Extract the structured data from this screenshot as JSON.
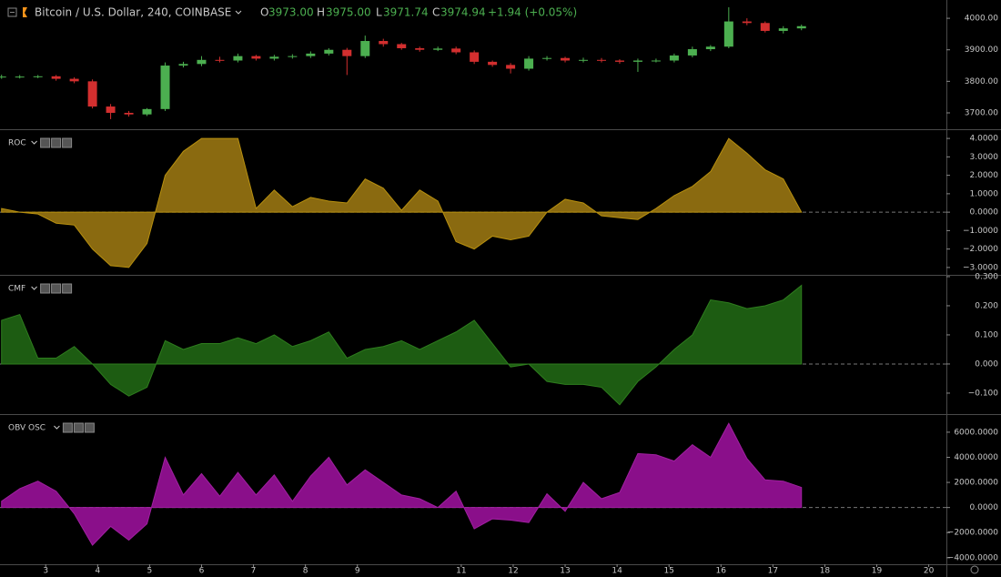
{
  "chart_data": [
    {
      "type": "candlestick",
      "title": "Bitcoin / U.S. Dollar, 240, COINBASE",
      "ohlc_legend": [
        {
          "label": "O",
          "value": "3973.00"
        },
        {
          "label": "H",
          "value": "3975.00"
        },
        {
          "label": "L",
          "value": "3971.74"
        },
        {
          "label": "C",
          "value": "3974.94"
        }
      ],
      "change": "+1.94 (+0.05%)",
      "up_color": "#4caf50",
      "down_color": "#d32f2f",
      "xlim": [
        2.12,
        20.34
      ],
      "x": [
        2.15,
        2.5,
        2.85,
        3.2,
        3.55,
        3.9,
        4.25,
        4.6,
        4.95,
        5.3,
        5.65,
        6.0,
        6.35,
        6.7,
        7.05,
        7.4,
        7.75,
        8.1,
        8.45,
        8.8,
        9.15,
        9.5,
        9.85,
        10.2,
        10.55,
        10.9,
        11.25,
        11.6,
        11.95,
        12.3,
        12.65,
        13.0,
        13.35,
        13.7,
        14.05,
        14.4,
        14.75,
        15.1,
        15.45,
        15.8,
        16.15,
        16.5,
        16.85,
        17.2,
        17.55
      ],
      "open": [
        3814,
        3815,
        3815,
        3816,
        3808,
        3800,
        3720,
        3700,
        3695,
        3712,
        3850,
        3855,
        3868,
        3866,
        3880,
        3872,
        3878,
        3880,
        3888,
        3900,
        3880,
        3928,
        3918,
        3905,
        3900,
        3904,
        3892,
        3862,
        3852,
        3840,
        3872,
        3874,
        3866,
        3868,
        3866,
        3862,
        3866,
        3866,
        3882,
        3902,
        3910,
        3990,
        3985,
        3960,
        3968
      ],
      "high": [
        3821,
        3820,
        3820,
        3820,
        3813,
        3806,
        3728,
        3706,
        3715,
        3860,
        3862,
        3880,
        3878,
        3888,
        3884,
        3884,
        3886,
        3895,
        3905,
        3906,
        3945,
        3935,
        3922,
        3910,
        3910,
        3910,
        3898,
        3866,
        3858,
        3880,
        3880,
        3878,
        3875,
        3874,
        3870,
        3872,
        3872,
        3888,
        3910,
        3915,
        4035,
        4000,
        3990,
        3975,
        3980
      ],
      "low": [
        3808,
        3809,
        3810,
        3802,
        3794,
        3714,
        3680,
        3688,
        3690,
        3706,
        3844,
        3848,
        3860,
        3860,
        3866,
        3866,
        3872,
        3874,
        3882,
        3820,
        3874,
        3910,
        3900,
        3894,
        3896,
        3886,
        3855,
        3846,
        3825,
        3834,
        3866,
        3860,
        3860,
        3860,
        3856,
        3830,
        3860,
        3860,
        3876,
        3896,
        3905,
        3978,
        3955,
        3952,
        3962
      ],
      "close": [
        3815,
        3815,
        3816,
        3808,
        3800,
        3720,
        3700,
        3695,
        3712,
        3850,
        3855,
        3868,
        3866,
        3880,
        3872,
        3878,
        3880,
        3888,
        3900,
        3880,
        3928,
        3918,
        3905,
        3900,
        3904,
        3892,
        3862,
        3852,
        3840,
        3872,
        3874,
        3866,
        3868,
        3866,
        3862,
        3866,
        3866,
        3882,
        3902,
        3910,
        3990,
        3985,
        3960,
        3968,
        3975
      ],
      "ylim": [
        3648,
        4058
      ],
      "yticks": [
        {
          "value": 3700,
          "label": "3700.00"
        },
        {
          "value": 3800,
          "label": "3800.00"
        },
        {
          "value": 3900,
          "label": "3900.00"
        },
        {
          "value": 4000,
          "label": "4000.00"
        }
      ]
    },
    {
      "type": "area",
      "title": "ROC",
      "color": "#8a6a10",
      "line_color": "#b8900f",
      "xlim": [
        2.12,
        20.34
      ],
      "x": [
        2.15,
        2.5,
        2.85,
        3.2,
        3.55,
        3.9,
        4.25,
        4.6,
        4.95,
        5.3,
        5.65,
        6.0,
        6.35,
        6.7,
        7.05,
        7.4,
        7.75,
        8.1,
        8.45,
        8.8,
        9.15,
        9.5,
        9.85,
        10.2,
        10.55,
        10.9,
        11.25,
        11.6,
        11.95,
        12.3,
        12.65,
        13.0,
        13.35,
        13.7,
        14.05,
        14.4,
        14.75,
        15.1,
        15.45,
        15.8,
        16.15,
        16.5,
        16.85,
        17.2,
        17.55
      ],
      "values": [
        0.2,
        0.0,
        -0.1,
        -0.6,
        -0.7,
        -2.0,
        -2.9,
        -3.0,
        -1.7,
        2.0,
        3.3,
        4.0,
        4.0,
        4.0,
        0.2,
        1.2,
        0.3,
        0.8,
        0.6,
        0.5,
        1.8,
        1.3,
        0.1,
        1.2,
        0.6,
        -1.6,
        -2.0,
        -1.3,
        -1.5,
        -1.3,
        0.0,
        0.7,
        0.5,
        -0.2,
        -0.3,
        -0.4,
        0.2,
        0.9,
        1.4,
        2.2,
        4.0,
        3.2,
        2.3,
        1.8,
        0.0
      ],
      "ylim": [
        -3.4,
        4.45
      ],
      "yticks": [
        {
          "value": -3,
          "label": "−3.0000"
        },
        {
          "value": -2,
          "label": "−2.0000"
        },
        {
          "value": -1,
          "label": "−1.0000"
        },
        {
          "value": 0,
          "label": "0.0000"
        },
        {
          "value": 1,
          "label": "1.0000"
        },
        {
          "value": 2,
          "label": "2.0000"
        },
        {
          "value": 3,
          "label": "3.0000"
        },
        {
          "value": 4,
          "label": "4.0000"
        }
      ]
    },
    {
      "type": "area",
      "title": "CMF",
      "color": "#1d5c12",
      "line_color": "#2e7d1e",
      "xlim": [
        2.12,
        20.34
      ],
      "x": [
        2.15,
        2.5,
        2.85,
        3.2,
        3.55,
        3.9,
        4.25,
        4.6,
        4.95,
        5.3,
        5.65,
        6.0,
        6.35,
        6.7,
        7.05,
        7.4,
        7.75,
        8.1,
        8.45,
        8.8,
        9.15,
        9.5,
        9.85,
        10.2,
        10.55,
        10.9,
        11.25,
        11.6,
        11.95,
        12.3,
        12.65,
        13.0,
        13.35,
        13.7,
        14.05,
        14.4,
        14.75,
        15.1,
        15.45,
        15.8,
        16.15,
        16.5,
        16.85,
        17.2,
        17.55
      ],
      "values": [
        0.15,
        0.17,
        0.02,
        0.02,
        0.06,
        0.0,
        -0.07,
        -0.11,
        -0.08,
        0.08,
        0.05,
        0.07,
        0.07,
        0.09,
        0.07,
        0.1,
        0.06,
        0.08,
        0.11,
        0.02,
        0.05,
        0.06,
        0.08,
        0.05,
        0.08,
        0.11,
        0.15,
        0.07,
        -0.01,
        0.0,
        -0.06,
        -0.07,
        -0.07,
        -0.08,
        -0.14,
        -0.06,
        -0.01,
        0.05,
        0.1,
        0.22,
        0.21,
        0.19,
        0.2,
        0.22,
        0.27
      ],
      "ylim": [
        -0.172,
        0.303
      ],
      "yticks": [
        {
          "value": -0.1,
          "label": "−0.100"
        },
        {
          "value": 0,
          "label": "0.000"
        },
        {
          "value": 0.1,
          "label": "0.100"
        },
        {
          "value": 0.2,
          "label": "0.200"
        },
        {
          "value": 0.3,
          "label": "0.300"
        }
      ]
    },
    {
      "type": "area",
      "title": "OBV OSC",
      "color": "#8a0f8a",
      "line_color": "#a020a0",
      "xlim": [
        2.12,
        20.34
      ],
      "x": [
        2.15,
        2.5,
        2.85,
        3.2,
        3.55,
        3.9,
        4.25,
        4.6,
        4.95,
        5.3,
        5.65,
        6.0,
        6.35,
        6.7,
        7.05,
        7.4,
        7.75,
        8.1,
        8.45,
        8.8,
        9.15,
        9.5,
        9.85,
        10.2,
        10.55,
        10.9,
        11.25,
        11.6,
        11.95,
        12.3,
        12.65,
        13.0,
        13.35,
        13.7,
        14.05,
        14.4,
        14.75,
        15.1,
        15.45,
        15.8,
        16.15,
        16.5,
        16.85,
        17.2,
        17.55
      ],
      "values": [
        500,
        1500,
        2100,
        1300,
        -500,
        -3000,
        -1500,
        -2600,
        -1300,
        4000,
        1000,
        2700,
        900,
        2800,
        1000,
        2600,
        500,
        2500,
        4000,
        1800,
        3000,
        2000,
        1000,
        700,
        0,
        1300,
        -1700,
        -900,
        -1000,
        -1200,
        1100,
        -300,
        2000,
        700,
        1200,
        4300,
        4200,
        3700,
        5000,
        4000,
        6700,
        3900,
        2200,
        2100,
        1600
      ],
      "ylim": [
        -4520,
        7370
      ],
      "yticks": [
        {
          "value": -4000,
          "label": "−4000.0000"
        },
        {
          "value": -2000,
          "label": "−2000.0000"
        },
        {
          "value": 0,
          "label": "0.0000"
        },
        {
          "value": 2000,
          "label": "2000.0000"
        },
        {
          "value": 4000,
          "label": "4000.0000"
        },
        {
          "value": 6000,
          "label": "6000.0000"
        }
      ],
      "xticks": [
        3,
        4,
        5,
        6,
        7,
        8,
        9,
        11,
        12,
        13,
        14,
        15,
        16,
        17,
        18,
        19,
        20
      ]
    }
  ]
}
